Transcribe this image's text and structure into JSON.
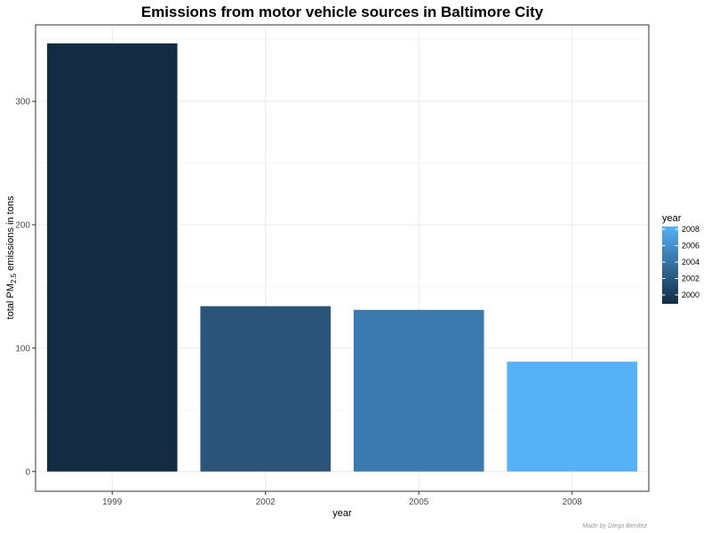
{
  "chart_data": {
    "type": "bar",
    "title": "Emissions from motor vehicle sources in Baltimore City",
    "xlabel": "year",
    "ylabel_parts": [
      "total PM",
      "2.5",
      " emissions in tons"
    ],
    "categories": [
      "1999",
      "2002",
      "2005",
      "2008"
    ],
    "values": [
      347,
      134,
      131,
      89
    ],
    "ylim": [
      -16,
      362
    ],
    "y_ticks": [
      0,
      100,
      200,
      300
    ],
    "grid": true,
    "fill_colors": [
      "#132b43",
      "#2a5578",
      "#3b7aae",
      "#56b1f7"
    ],
    "legend": {
      "title": "year",
      "placement": "right",
      "labels": [
        "2008",
        "2006",
        "2004",
        "2002",
        "2000"
      ],
      "colors": [
        "#56b1f7",
        "#132b43"
      ]
    },
    "caption": "Made by Diego Benítez"
  }
}
